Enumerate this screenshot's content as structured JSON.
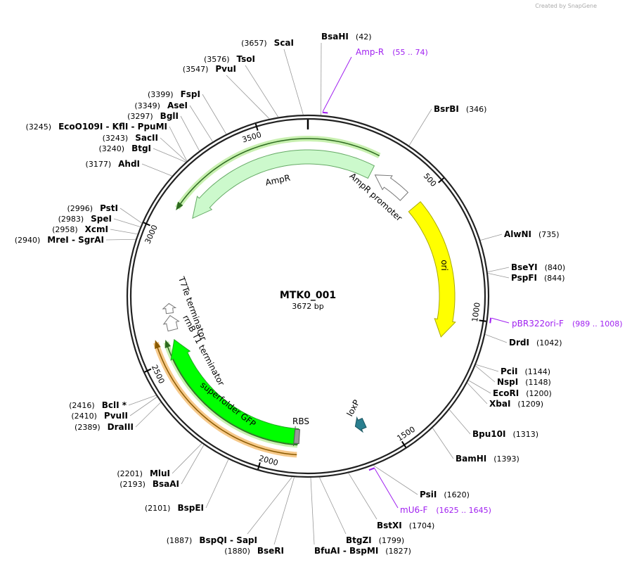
{
  "header": {
    "credit": "Created by SnapGene"
  },
  "plasmid": {
    "name": "MTK0_001",
    "length": "3672 bp"
  },
  "ring_ticks": [
    500,
    1000,
    1500,
    2000,
    2500,
    3000,
    3500
  ],
  "features": [
    {
      "label": "AmpR"
    },
    {
      "label": "AmpR promoter"
    },
    {
      "label": "ori"
    },
    {
      "label": "superfolder GFP"
    },
    {
      "label": "RBS"
    },
    {
      "label": "rrnB T1 terminator"
    },
    {
      "label": "T7Te terminator"
    },
    {
      "label": "loxP"
    }
  ],
  "primers": [
    {
      "name": "Amp-R",
      "range": "(55 .. 74)"
    },
    {
      "name": "pBR322ori-F",
      "range": "(989 .. 1008)"
    },
    {
      "name": "mU6-F",
      "range": "(1625 .. 1645)"
    }
  ],
  "sites": [
    {
      "name": "BsaHI",
      "position": "(42)"
    },
    {
      "name": "BsrBI",
      "position": "(346)"
    },
    {
      "name": "AlwNI",
      "position": "(735)"
    },
    {
      "name": "BseYI",
      "position": "(840)"
    },
    {
      "name": "PspFI",
      "position": "(844)"
    },
    {
      "name": "DrdI",
      "position": "(1042)"
    },
    {
      "name": "PciI",
      "position": "(1144)"
    },
    {
      "name": "NspI",
      "position": "(1148)"
    },
    {
      "name": "EcoRI",
      "position": "(1200)"
    },
    {
      "name": "XbaI",
      "position": "(1209)"
    },
    {
      "name": "Bpu10I",
      "position": "(1313)"
    },
    {
      "name": "BamHI",
      "position": "(1393)"
    },
    {
      "name": "PsiI",
      "position": "(1620)"
    },
    {
      "name": "BstXI",
      "position": "(1704)"
    },
    {
      "name": "BtgZI",
      "position": "(1799)"
    },
    {
      "name": "BfuAI - BspMI",
      "position": "(1827)"
    },
    {
      "name": "BseRI",
      "position": "(1880)"
    },
    {
      "name": "BspQI - SapI",
      "position": "(1887)"
    },
    {
      "name": "BspEI",
      "position": "(2101)"
    },
    {
      "name": "BsaAI",
      "position": "(2193)"
    },
    {
      "name": "MluI",
      "position": "(2201)"
    },
    {
      "name": "DraIII",
      "position": "(2389)"
    },
    {
      "name": "PvuII",
      "position": "(2410)"
    },
    {
      "name": "BclI *",
      "position": "(2416)"
    },
    {
      "name": "MreI - SgrAI",
      "position": "(2940)"
    },
    {
      "name": "XcmI",
      "position": "(2958)"
    },
    {
      "name": "SpeI",
      "position": "(2983)"
    },
    {
      "name": "PstI",
      "position": "(2996)"
    },
    {
      "name": "AhdI",
      "position": "(3177)"
    },
    {
      "name": "BtgI",
      "position": "(3240)"
    },
    {
      "name": "SacII",
      "position": "(3243)"
    },
    {
      "name": "EcoO109I - KflI - PpuMI",
      "position": "(3245)"
    },
    {
      "name": "BglI",
      "position": "(3297)"
    },
    {
      "name": "AseI",
      "position": "(3349)"
    },
    {
      "name": "FspI",
      "position": "(3399)"
    },
    {
      "name": "PvuI",
      "position": "(3547)"
    },
    {
      "name": "TsoI",
      "position": "(3576)"
    },
    {
      "name": "ScaI",
      "position": "(3657)"
    }
  ]
}
